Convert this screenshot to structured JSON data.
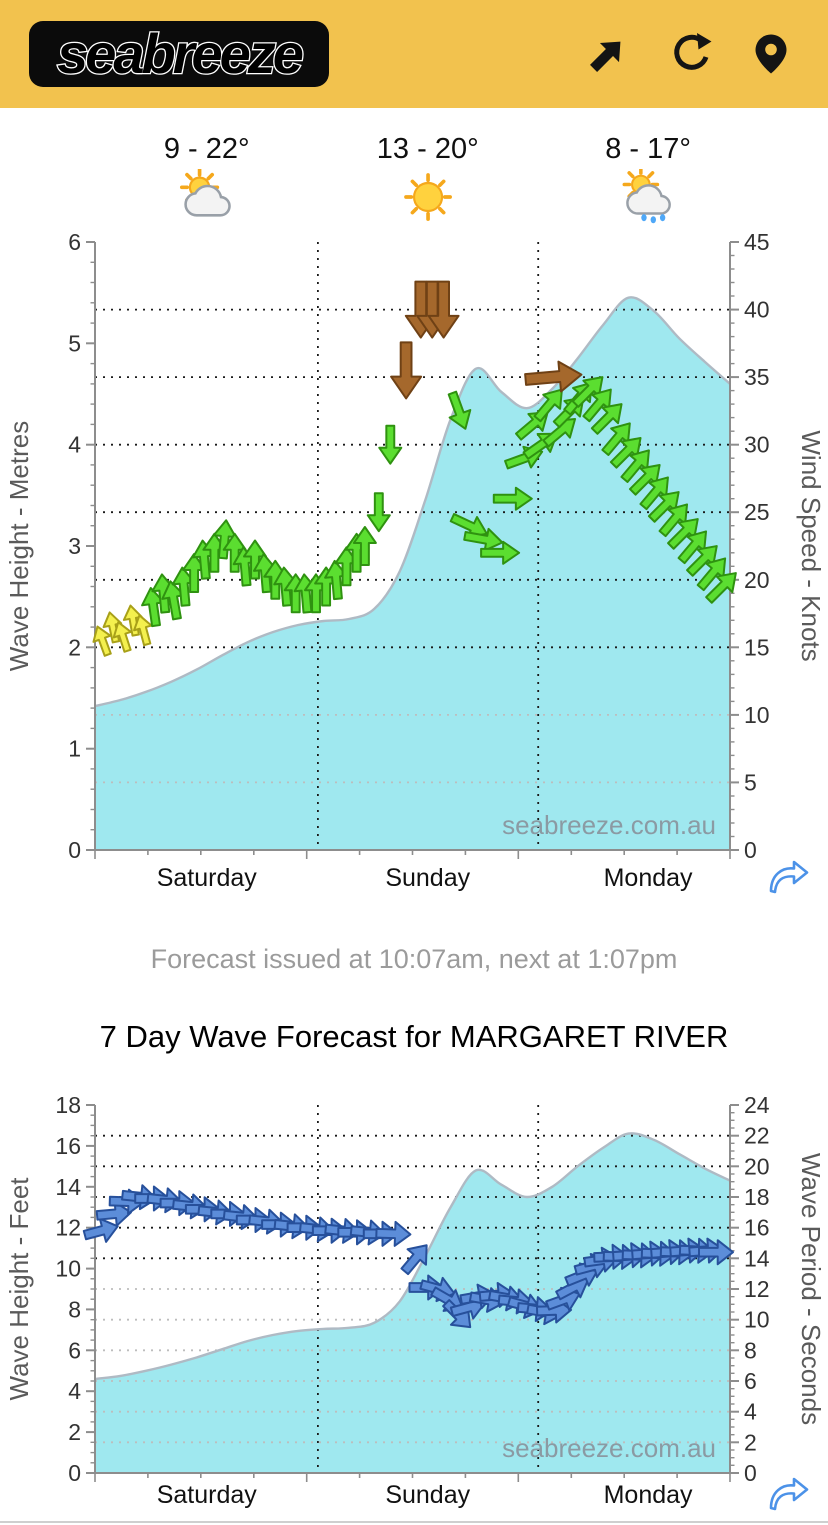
{
  "header": {
    "logo_text": "seabreeze",
    "bg_color": "#F2C24E",
    "icons": [
      {
        "name": "share-arrow-icon"
      },
      {
        "name": "refresh-icon"
      },
      {
        "name": "location-pin-icon"
      }
    ]
  },
  "temps": [
    {
      "label": "9 - 22°",
      "icon": "sun-behind-cloud"
    },
    {
      "label": "13 - 20°",
      "icon": "sunny"
    },
    {
      "label": "8 - 17°",
      "icon": "sun-behind-rain-cloud"
    }
  ],
  "forecast_note": "Forecast issued at 10:07am, next at 1:07pm",
  "section_title": "7 Day Wave Forecast for MARGARET RIVER",
  "watermark": "seabreeze.com.au",
  "chart_share_icon": "forward-curved-arrow-icon",
  "arrow_styles": {
    "yellow": {
      "fill": "#F4F04E",
      "stroke": "#A8A018",
      "len": 30,
      "w": 9
    },
    "green": {
      "fill": "#5BDE30",
      "stroke": "#2F9210",
      "len": 38,
      "w": 11
    },
    "brown": {
      "fill": "#A5682C",
      "stroke": "#6F4115",
      "len": 56,
      "w": 15
    },
    "blue": {
      "fill": "#5C8DD9",
      "stroke": "#27509B",
      "len": 34,
      "w": 12
    }
  },
  "chart_data": [
    {
      "type": "area",
      "name": "wind-wave-forecast",
      "x_categories": [
        "Saturday",
        "Sunday",
        "Monday"
      ],
      "x_category_centers": [
        0.176,
        0.524,
        0.871
      ],
      "day_boundaries": [
        0.351,
        0.698
      ],
      "left_axis": {
        "label": "Wave Height - Metres",
        "min": 0,
        "max": 6,
        "step": 1,
        "minor": 0.2
      },
      "right_axis": {
        "label": "Wind Speed - Knots",
        "min": 0,
        "max": 45,
        "step": 5,
        "minor": 1,
        "dark_grid_from": 15
      },
      "area_series": {
        "name": "wave-height-metres",
        "unit": "metres",
        "fill": "#9FE8EF",
        "stroke": "#AFBAC4",
        "x": [
          0,
          0.04,
          0.08,
          0.12,
          0.16,
          0.2,
          0.24,
          0.28,
          0.32,
          0.36,
          0.4,
          0.44,
          0.48,
          0.52,
          0.56,
          0.6,
          0.64,
          0.68,
          0.72,
          0.76,
          0.8,
          0.84,
          0.88,
          0.92,
          0.96,
          1
        ],
        "y": [
          1.42,
          1.48,
          1.56,
          1.66,
          1.78,
          1.92,
          2.05,
          2.15,
          2.22,
          2.26,
          2.28,
          2.38,
          2.75,
          3.45,
          4.25,
          4.75,
          4.52,
          4.36,
          4.55,
          4.85,
          5.18,
          5.45,
          5.32,
          5.05,
          4.82,
          4.6
        ]
      },
      "arrow_series": {
        "name": "wind",
        "unit": "knots",
        "points": [
          [
            0.012,
            15.5,
            -20,
            "yellow"
          ],
          [
            0.028,
            16.5,
            -12,
            "yellow"
          ],
          [
            0.044,
            15.8,
            -18,
            "yellow"
          ],
          [
            0.06,
            17,
            -10,
            "yellow"
          ],
          [
            0.076,
            16.3,
            -15,
            "yellow"
          ],
          [
            0.092,
            18,
            -8,
            "green"
          ],
          [
            0.108,
            19,
            -5,
            "green"
          ],
          [
            0.124,
            18.5,
            -10,
            "green"
          ],
          [
            0.14,
            19.5,
            -5,
            "green"
          ],
          [
            0.156,
            20.5,
            0,
            "green"
          ],
          [
            0.172,
            21.5,
            -5,
            "green"
          ],
          [
            0.188,
            22,
            0,
            "green"
          ],
          [
            0.204,
            23,
            5,
            "green"
          ],
          [
            0.22,
            22,
            0,
            "green"
          ],
          [
            0.236,
            21,
            -5,
            "green"
          ],
          [
            0.252,
            21.5,
            0,
            "green"
          ],
          [
            0.268,
            20.5,
            -5,
            "green"
          ],
          [
            0.284,
            20,
            0,
            "green"
          ],
          [
            0.3,
            19.5,
            -5,
            "green"
          ],
          [
            0.316,
            19,
            0,
            "green"
          ],
          [
            0.332,
            19,
            -5,
            "green"
          ],
          [
            0.348,
            19,
            0,
            "green"
          ],
          [
            0.364,
            19.5,
            0,
            "green"
          ],
          [
            0.38,
            20,
            -5,
            "green"
          ],
          [
            0.396,
            21,
            0,
            "green"
          ],
          [
            0.412,
            22,
            0,
            "green"
          ],
          [
            0.425,
            22.5,
            0,
            "green"
          ],
          [
            0.447,
            25,
            180,
            "green"
          ],
          [
            0.465,
            30,
            180,
            "green"
          ],
          [
            0.49,
            35.5,
            180,
            "brown"
          ],
          [
            0.513,
            40,
            180,
            "brown"
          ],
          [
            0.531,
            40,
            180,
            "brown"
          ],
          [
            0.549,
            40,
            180,
            "brown"
          ],
          [
            0.573,
            32.5,
            160,
            "green"
          ],
          [
            0.59,
            24,
            115,
            "green"
          ],
          [
            0.612,
            23,
            100,
            "green"
          ],
          [
            0.638,
            22,
            90,
            "green"
          ],
          [
            0.658,
            26,
            90,
            "green"
          ],
          [
            0.676,
            29,
            70,
            "green"
          ],
          [
            0.69,
            31.5,
            50,
            "green"
          ],
          [
            0.703,
            30,
            55,
            "green"
          ],
          [
            0.716,
            33,
            40,
            "green"
          ],
          [
            0.722,
            35,
            85,
            "brown"
          ],
          [
            0.733,
            31,
            50,
            "green"
          ],
          [
            0.748,
            32.5,
            45,
            "green"
          ],
          [
            0.763,
            33.5,
            40,
            "green"
          ],
          [
            0.778,
            34,
            45,
            "green"
          ],
          [
            0.793,
            33,
            40,
            "green"
          ],
          [
            0.808,
            32,
            45,
            "green"
          ],
          [
            0.823,
            30.5,
            40,
            "green"
          ],
          [
            0.838,
            29.5,
            45,
            "green"
          ],
          [
            0.853,
            28.5,
            40,
            "green"
          ],
          [
            0.868,
            27.5,
            45,
            "green"
          ],
          [
            0.883,
            26.5,
            40,
            "green"
          ],
          [
            0.898,
            25.5,
            45,
            "green"
          ],
          [
            0.913,
            24.5,
            40,
            "green"
          ],
          [
            0.928,
            23.5,
            45,
            "green"
          ],
          [
            0.943,
            22.5,
            40,
            "green"
          ],
          [
            0.958,
            21.5,
            45,
            "green"
          ],
          [
            0.973,
            20.5,
            40,
            "green"
          ],
          [
            0.988,
            19.5,
            45,
            "green"
          ]
        ]
      }
    },
    {
      "type": "area",
      "name": "wave-period-forecast",
      "x_categories": [
        "Saturday",
        "Sunday",
        "Monday"
      ],
      "x_category_centers": [
        0.176,
        0.524,
        0.871
      ],
      "day_boundaries": [
        0.351,
        0.698
      ],
      "left_axis": {
        "label": "Wave Height - Feet",
        "min": 0,
        "max": 18,
        "step": 2,
        "minor": 0.5
      },
      "right_axis": {
        "label": "Wave Period - Seconds",
        "min": 0,
        "max": 24,
        "step": 2,
        "minor": 0.5,
        "dark_grid_from": 14
      },
      "area_series": {
        "name": "wave-height-feet",
        "unit": "feet",
        "fill": "#9FE8EF",
        "stroke": "#AFBAC4",
        "x": [
          0,
          0.04,
          0.08,
          0.12,
          0.16,
          0.2,
          0.24,
          0.28,
          0.32,
          0.36,
          0.4,
          0.44,
          0.48,
          0.52,
          0.56,
          0.6,
          0.64,
          0.68,
          0.72,
          0.76,
          0.8,
          0.84,
          0.88,
          0.92,
          0.96,
          1
        ],
        "y": [
          4.6,
          4.75,
          5.0,
          5.3,
          5.65,
          6.05,
          6.45,
          6.75,
          6.95,
          7.05,
          7.1,
          7.35,
          8.4,
          10.6,
          13.0,
          14.8,
          14.1,
          13.5,
          14.0,
          15.0,
          15.9,
          16.6,
          16.3,
          15.6,
          14.9,
          14.3
        ]
      },
      "arrow_series": {
        "name": "swell",
        "unit": "seconds",
        "points": [
          [
            0.01,
            15.8,
            75,
            "blue"
          ],
          [
            0.03,
            16.9,
            85,
            "blue"
          ],
          [
            0.05,
            17.7,
            92,
            "blue"
          ],
          [
            0.07,
            18,
            96,
            "blue"
          ],
          [
            0.09,
            17.9,
            90,
            "blue"
          ],
          [
            0.11,
            17.8,
            96,
            "blue"
          ],
          [
            0.13,
            17.6,
            90,
            "blue"
          ],
          [
            0.15,
            17.4,
            96,
            "blue"
          ],
          [
            0.17,
            17.2,
            90,
            "blue"
          ],
          [
            0.19,
            17,
            96,
            "blue"
          ],
          [
            0.21,
            16.9,
            90,
            "blue"
          ],
          [
            0.23,
            16.7,
            96,
            "blue"
          ],
          [
            0.25,
            16.5,
            90,
            "blue"
          ],
          [
            0.27,
            16.4,
            96,
            "blue"
          ],
          [
            0.29,
            16.2,
            90,
            "blue"
          ],
          [
            0.31,
            16.1,
            96,
            "blue"
          ],
          [
            0.33,
            16,
            90,
            "blue"
          ],
          [
            0.35,
            15.9,
            96,
            "blue"
          ],
          [
            0.37,
            15.8,
            90,
            "blue"
          ],
          [
            0.39,
            15.8,
            96,
            "blue"
          ],
          [
            0.41,
            15.7,
            90,
            "blue"
          ],
          [
            0.43,
            15.7,
            96,
            "blue"
          ],
          [
            0.45,
            15.6,
            90,
            "blue"
          ],
          [
            0.47,
            15.6,
            92,
            "blue"
          ],
          [
            0.505,
            14,
            40,
            "blue"
          ],
          [
            0.522,
            12.1,
            90,
            "blue"
          ],
          [
            0.54,
            12,
            105,
            "blue"
          ],
          [
            0.556,
            11.3,
            120,
            "blue"
          ],
          [
            0.572,
            10.3,
            135,
            "blue"
          ],
          [
            0.588,
            10.8,
            75,
            "blue"
          ],
          [
            0.603,
            11.5,
            80,
            "blue"
          ],
          [
            0.618,
            11.3,
            100,
            "blue"
          ],
          [
            0.633,
            11.6,
            85,
            "blue"
          ],
          [
            0.648,
            11.4,
            100,
            "blue"
          ],
          [
            0.663,
            11.2,
            95,
            "blue"
          ],
          [
            0.678,
            10.9,
            105,
            "blue"
          ],
          [
            0.693,
            10.7,
            95,
            "blue"
          ],
          [
            0.708,
            10.5,
            100,
            "blue"
          ],
          [
            0.723,
            10.6,
            88,
            "blue"
          ],
          [
            0.738,
            11.3,
            70,
            "blue"
          ],
          [
            0.753,
            12.1,
            62,
            "blue"
          ],
          [
            0.768,
            12.9,
            68,
            "blue"
          ],
          [
            0.783,
            13.5,
            75,
            "blue"
          ],
          [
            0.798,
            13.9,
            82,
            "blue"
          ],
          [
            0.813,
            14.1,
            88,
            "blue"
          ],
          [
            0.828,
            14.1,
            92,
            "blue"
          ],
          [
            0.843,
            14.2,
            86,
            "blue"
          ],
          [
            0.858,
            14.2,
            92,
            "blue"
          ],
          [
            0.873,
            14.3,
            86,
            "blue"
          ],
          [
            0.888,
            14.3,
            92,
            "blue"
          ],
          [
            0.903,
            14.4,
            86,
            "blue"
          ],
          [
            0.918,
            14.4,
            92,
            "blue"
          ],
          [
            0.933,
            14.5,
            86,
            "blue"
          ],
          [
            0.948,
            14.5,
            92,
            "blue"
          ],
          [
            0.963,
            14.5,
            86,
            "blue"
          ],
          [
            0.978,
            14.4,
            90,
            "blue"
          ]
        ]
      }
    }
  ]
}
